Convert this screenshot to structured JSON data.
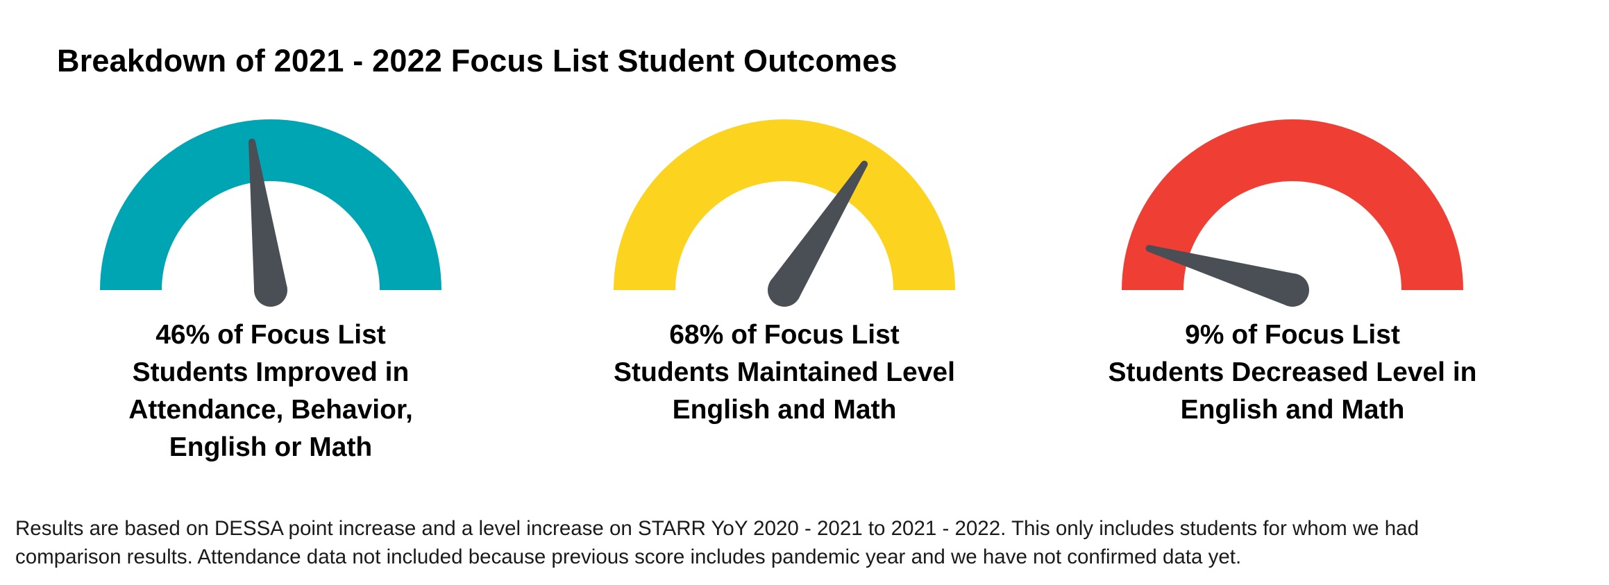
{
  "title": "Breakdown of 2021 - 2022 Focus List Student Outcomes",
  "chart_data": {
    "type": "gauge",
    "title": "Breakdown of 2021 - 2022 Focus List Student Outcomes",
    "range": [
      0,
      100
    ],
    "needle_color": "#4a4e55",
    "gauges": [
      {
        "value": 46,
        "color": "#00a5b4",
        "caption_lines": [
          "46% of Focus List",
          "Students Improved in",
          "Attendance, Behavior,",
          "English or Math"
        ]
      },
      {
        "value": 68,
        "color": "#fcd41f",
        "caption_lines": [
          "68% of Focus List",
          "Students Maintained Level",
          "English and Math"
        ]
      },
      {
        "value": 9,
        "color": "#ef3f35",
        "caption_lines": [
          "9% of Focus List",
          "Students Decreased Level in",
          "English and Math"
        ]
      }
    ]
  },
  "footnote": [
    "Results are based on DESSA point increase and a level increase on STARR YoY 2020 - 2021 to 2021 - 2022. This only includes students for whom we had",
    "comparison results. Attendance data not included because previous score includes pandemic year and we have not confirmed data yet."
  ]
}
